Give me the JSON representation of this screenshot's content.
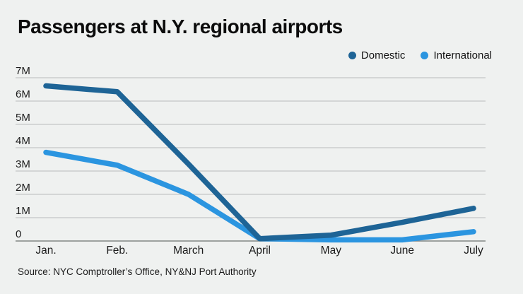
{
  "chart": {
    "title": "Passengers at N.Y. regional airports",
    "source": "Source: NYC Comptroller’s Office, NY&NJ Port Authority",
    "legend": [
      {
        "label": "Domestic",
        "color": "#1e6496"
      },
      {
        "label": "International",
        "color": "#2b95e0"
      }
    ]
  },
  "chart_data": {
    "type": "line",
    "title": "Passengers at N.Y. regional airports",
    "categories": [
      "Jan.",
      "Feb.",
      "March",
      "April",
      "May",
      "June",
      "July"
    ],
    "series": [
      {
        "name": "Domestic",
        "color": "#1e6496",
        "values": [
          6.65,
          6.4,
          3.3,
          0.1,
          0.25,
          0.8,
          1.4
        ]
      },
      {
        "name": "International",
        "color": "#2b95e0",
        "values": [
          3.8,
          3.25,
          2.0,
          0.1,
          0.05,
          0.05,
          0.4
        ]
      }
    ],
    "unit": "millions of passengers",
    "xlabel": "",
    "ylabel": "",
    "ylim": [
      0,
      7
    ],
    "yticks": [
      "0",
      "1M",
      "2M",
      "3M",
      "4M",
      "5M",
      "6M",
      "7M"
    ],
    "grid": true,
    "legend_position": "top-right",
    "source": "Source: NYC Comptroller’s Office, NY&NJ Port Authority"
  },
  "colors": {
    "background": "#eff1f0",
    "gridline": "#b8bcbb",
    "zero_axis": "#848786",
    "tick_text": "#1c1c1c"
  }
}
